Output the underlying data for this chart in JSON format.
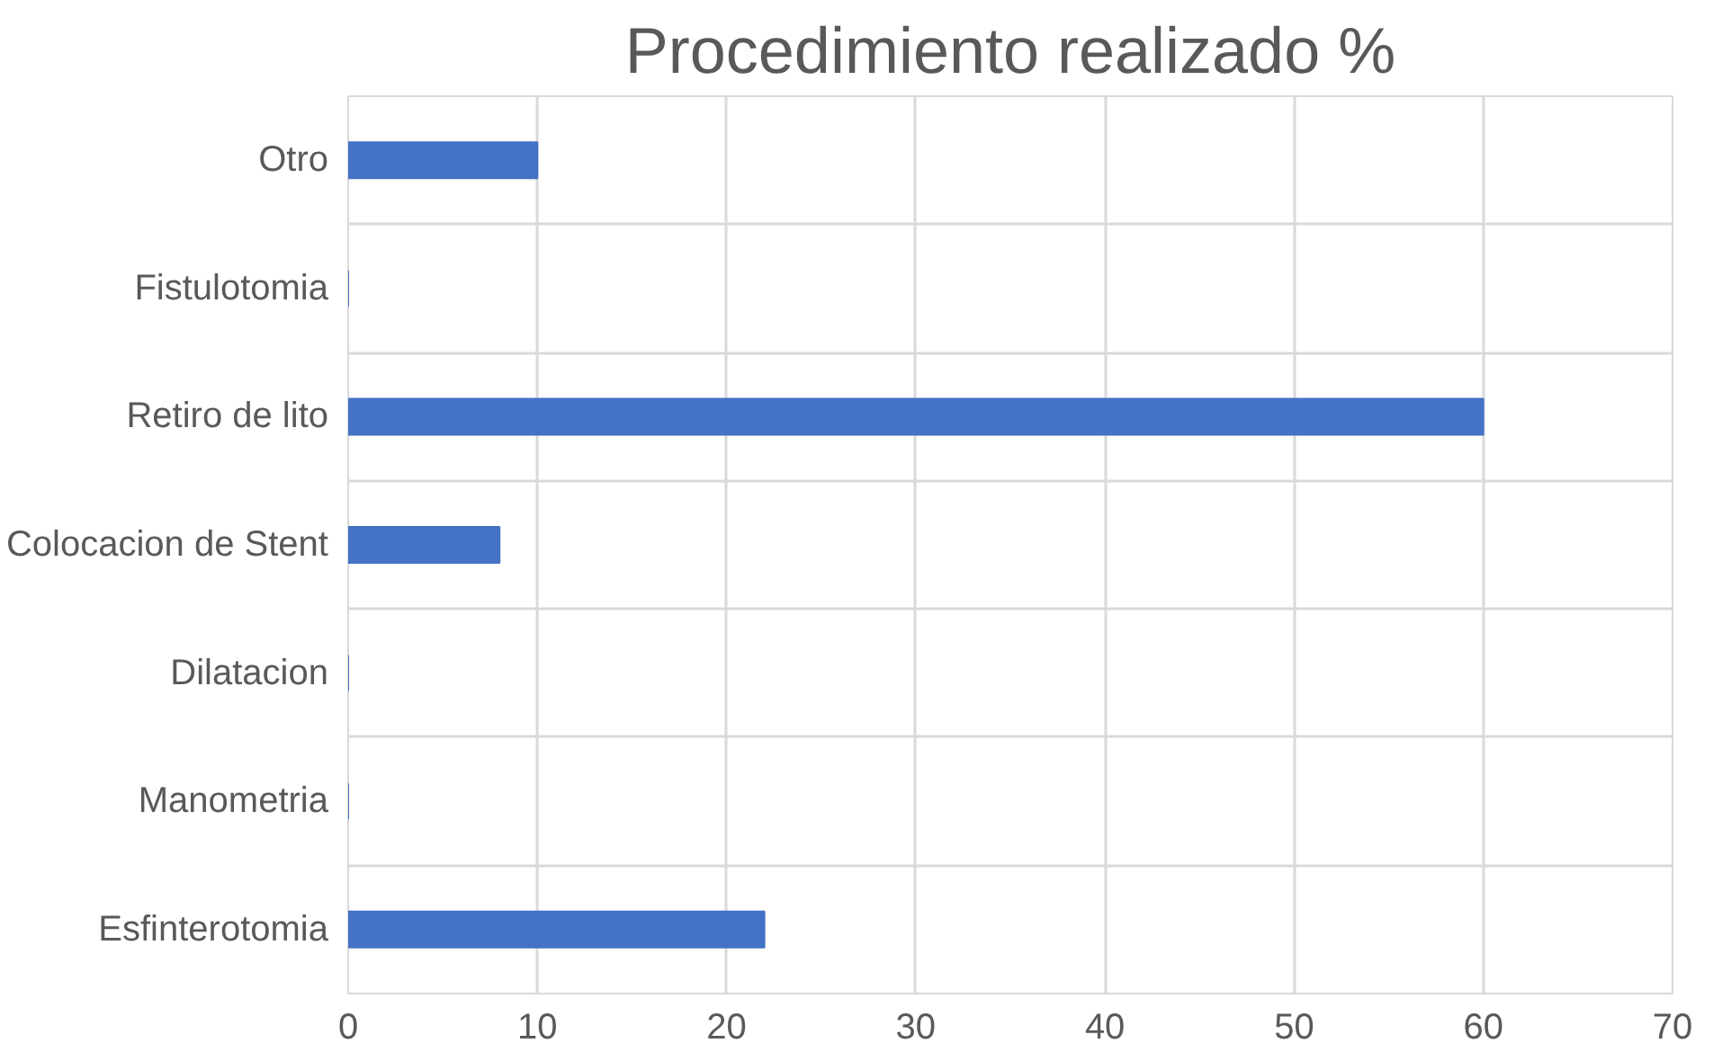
{
  "chart_data": {
    "type": "bar",
    "orientation": "horizontal",
    "title": "Procedimiento realizado %",
    "categories": [
      "Otro",
      "Fistulotomia",
      "Retiro de lito",
      "Colocacion de Stent",
      "Dilatacion",
      "Manometria",
      "Esfinterotomia"
    ],
    "values": [
      10,
      0,
      60,
      8,
      0,
      0,
      22
    ],
    "color": "#4472c4",
    "xlim": [
      0,
      70
    ],
    "xticks": [
      0,
      10,
      20,
      30,
      40,
      50,
      60,
      70
    ],
    "grid": true
  }
}
